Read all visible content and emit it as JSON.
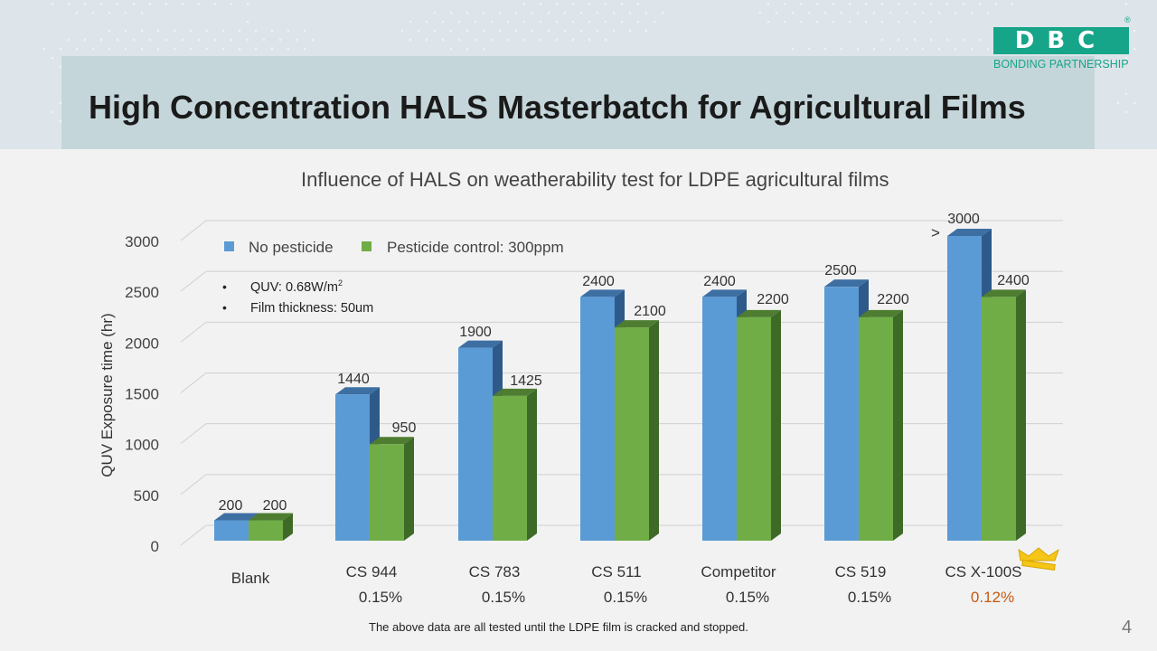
{
  "slide": {
    "title": "High Concentration HALS Masterbatch for Agricultural Films",
    "logo_text": "DBC",
    "logo_subtitle": "BONDING PARTNERSHIP",
    "logo_reg": "®",
    "footnote": "The above data are all tested until the LDPE film is cracked and stopped.",
    "page_number": "4"
  },
  "colors": {
    "no_pesticide": "#5b9bd5",
    "pesticide": "#70ad47",
    "highlight": "#c55a11",
    "crown": "#f5c518"
  },
  "icons": [
    "crown-icon"
  ],
  "chart_data": {
    "type": "bar",
    "title": "Influence of HALS on weatherability test for LDPE agricultural films",
    "ylabel": "QUV Exposure time (hr)",
    "ylim": [
      0,
      3000
    ],
    "yticks": [
      "0",
      "500",
      "1000",
      "1500",
      "2000",
      "2500",
      "3000"
    ],
    "categories": [
      "Blank",
      "CS 944",
      "CS 783",
      "CS 511",
      "Competitor",
      "CS 519",
      "CS X-100S"
    ],
    "dosages": [
      "",
      "0.15%",
      "0.15%",
      "0.15%",
      "0.15%",
      "0.15%",
      "0.12%"
    ],
    "series": [
      {
        "name": "No pesticide",
        "values": [
          200,
          1440,
          1900,
          2400,
          2400,
          2500,
          3000
        ],
        "labels": [
          "200",
          "1440",
          "1900",
          "2400",
          "2400",
          "2500",
          "3000"
        ]
      },
      {
        "name": "Pesticide control: 300ppm",
        "values": [
          200,
          950,
          1425,
          2100,
          2200,
          2200,
          2400
        ],
        "labels": [
          "200",
          "950",
          "1425",
          "2100",
          "2200",
          "2200",
          "2400"
        ]
      }
    ],
    "annotation": ">",
    "notes": [
      "QUV: 0.68W/m",
      "Film thickness: 50um"
    ],
    "notes_superscript": "2",
    "grid": true,
    "legend_position": "top-left"
  }
}
